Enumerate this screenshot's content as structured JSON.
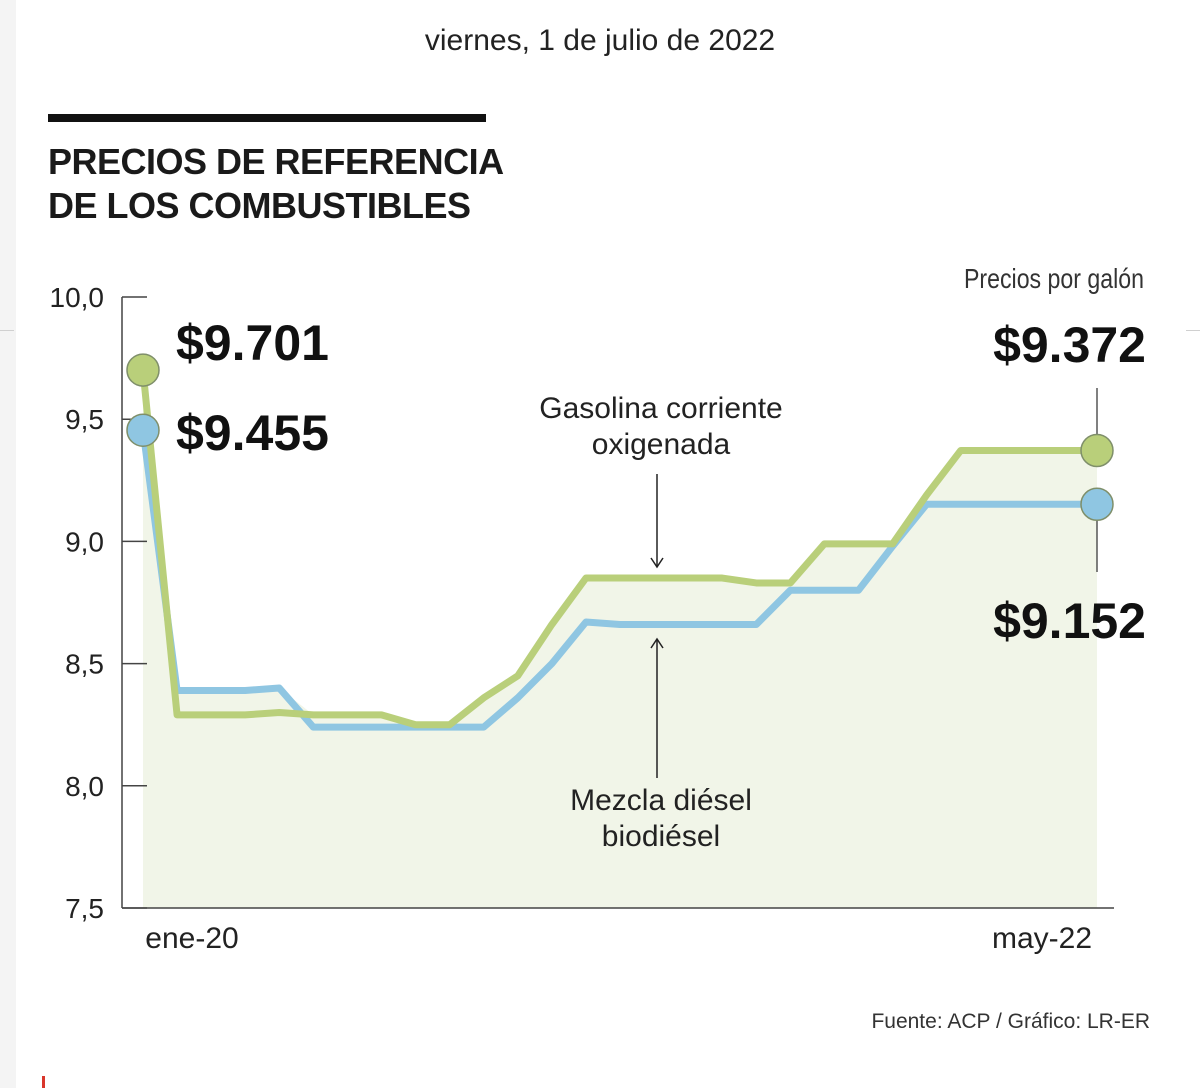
{
  "date_text": "viernes, 1 de julio de 2022",
  "title_lines": [
    "PRECIOS DE REFERENCIA",
    "DE LOS COMBUSTIBLES"
  ],
  "unit_note": "Precios por galón",
  "source": "Fuente: ACP / Gráfico: LR-ER",
  "colors": {
    "gasolina": "#b9cf7a",
    "diesel": "#8fc6e2",
    "fill": "#f1f5e8",
    "axis": "#444444"
  },
  "chart_data": {
    "type": "line",
    "title": "PRECIOS DE REFERENCIA DE LOS COMBUSTIBLES",
    "subtitle": "Precios por galón",
    "ylim": [
      7.5,
      10.0
    ],
    "yticks": [
      "10,0",
      "9,5",
      "9,0",
      "8,5",
      "8,0",
      "7,5"
    ],
    "ytick_values": [
      10.0,
      9.5,
      9.0,
      8.5,
      8.0,
      7.5
    ],
    "x_tick_labels": [
      "ene-20",
      "may-22"
    ],
    "x_range": [
      0,
      28
    ],
    "series": [
      {
        "name": "Gasolina corriente oxigenada",
        "label_lines": [
          "Gasolina corriente",
          "oxigenada"
        ],
        "x": [
          0,
          1,
          2,
          3,
          4,
          5,
          6,
          7,
          8,
          9,
          10,
          11,
          12,
          13,
          14,
          15,
          16,
          17,
          18,
          19,
          20,
          21,
          22,
          23,
          24,
          25,
          26,
          27,
          28
        ],
        "values": [
          9.701,
          8.29,
          8.29,
          8.29,
          8.3,
          8.29,
          8.29,
          8.29,
          8.25,
          8.25,
          8.36,
          8.45,
          8.66,
          8.85,
          8.85,
          8.85,
          8.85,
          8.85,
          8.83,
          8.83,
          8.99,
          8.99,
          8.99,
          9.19,
          9.372,
          9.372,
          9.372,
          9.372,
          9.372
        ]
      },
      {
        "name": "Mezcla diésel biodiésel",
        "label_lines": [
          "Mezcla diésel",
          "biodiésel"
        ],
        "x": [
          0,
          1,
          2,
          3,
          4,
          5,
          6,
          7,
          8,
          9,
          10,
          11,
          12,
          13,
          14,
          15,
          16,
          17,
          18,
          19,
          20,
          21,
          22,
          23,
          24,
          25,
          26,
          27,
          28
        ],
        "values": [
          9.455,
          8.39,
          8.39,
          8.39,
          8.4,
          8.24,
          8.24,
          8.24,
          8.24,
          8.24,
          8.24,
          8.36,
          8.5,
          8.67,
          8.66,
          8.66,
          8.66,
          8.66,
          8.66,
          8.8,
          8.8,
          8.8,
          8.98,
          9.152,
          9.152,
          9.152,
          9.152,
          9.152,
          9.152
        ]
      }
    ],
    "annotations": {
      "start_gasolina": "$9.701",
      "start_diesel": "$9.455",
      "end_gasolina": "$9.372",
      "end_diesel": "$9.152"
    },
    "grid": false,
    "legend": "none"
  }
}
